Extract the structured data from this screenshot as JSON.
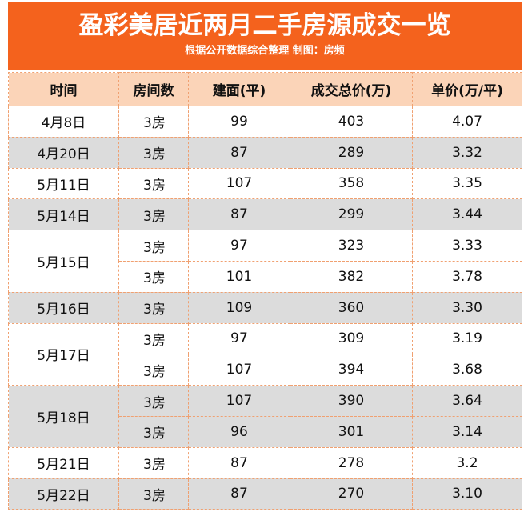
{
  "header": {
    "title": "盈彩美居近两月二手房源成交一览",
    "subtitle": "根据公开数据综合整理 制图：房频"
  },
  "table": {
    "columns": [
      "时间",
      "房间数",
      "建面(平)",
      "成交总价(万)",
      "单价(万/平)"
    ],
    "groups": [
      {
        "date": "4月8日",
        "items": [
          [
            "3房",
            "99",
            "403",
            "4.07"
          ]
        ]
      },
      {
        "date": "4月20日",
        "items": [
          [
            "3房",
            "87",
            "289",
            "3.32"
          ]
        ]
      },
      {
        "date": "5月11日",
        "items": [
          [
            "3房",
            "107",
            "358",
            "3.35"
          ]
        ]
      },
      {
        "date": "5月14日",
        "items": [
          [
            "3房",
            "87",
            "299",
            "3.44"
          ]
        ]
      },
      {
        "date": "5月15日",
        "items": [
          [
            "3房",
            "97",
            "323",
            "3.33"
          ],
          [
            "3房",
            "101",
            "382",
            "3.78"
          ]
        ]
      },
      {
        "date": "5月16日",
        "items": [
          [
            "3房",
            "109",
            "360",
            "3.30"
          ]
        ]
      },
      {
        "date": "5月17日",
        "items": [
          [
            "3房",
            "97",
            "309",
            "3.19"
          ],
          [
            "3房",
            "107",
            "394",
            "3.68"
          ]
        ]
      },
      {
        "date": "5月18日",
        "items": [
          [
            "3房",
            "107",
            "390",
            "3.64"
          ],
          [
            "3房",
            "96",
            "301",
            "3.14"
          ]
        ]
      },
      {
        "date": "5月21日",
        "items": [
          [
            "3房",
            "87",
            "278",
            "3.2"
          ]
        ]
      },
      {
        "date": "5月22日",
        "items": [
          [
            "3房",
            "87",
            "270",
            "3.10"
          ]
        ]
      }
    ]
  }
}
